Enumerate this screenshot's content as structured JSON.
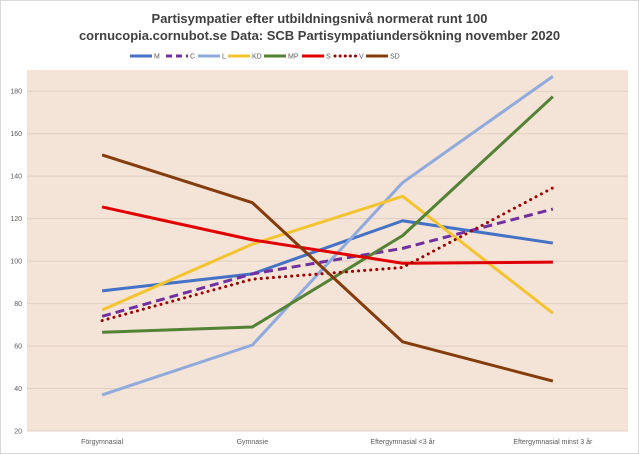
{
  "chart_data": {
    "type": "line",
    "title": "Partisympatier efter utbildningsnivå normerat runt 100",
    "subtitle": "cornucopia.cornubot.se Data: SCB Partisympatiundersökning november 2020",
    "xlabel": "",
    "ylabel": "",
    "categories": [
      "Förgymnasial",
      "Gymnasie",
      "Eftergymnasial <3 år",
      "Eftergymnasial minst 3 år"
    ],
    "ylim": [
      20,
      190
    ],
    "yticks": [
      20,
      40,
      60,
      80,
      100,
      120,
      140,
      160,
      180
    ],
    "grid": true,
    "legend": "top",
    "plot_background": "#f4e3d7",
    "series": [
      {
        "name": "M",
        "color": "#4472c4",
        "style": "solid",
        "values": [
          86,
          94,
          119,
          108.5
        ]
      },
      {
        "name": "C",
        "color": "#7030a0",
        "style": "dashed",
        "values": [
          74,
          94,
          106,
          124.5
        ]
      },
      {
        "name": "L",
        "color": "#8faadc",
        "style": "solid",
        "values": [
          37,
          60.5,
          137,
          187
        ]
      },
      {
        "name": "KD",
        "color": "#f4c430",
        "style": "solid",
        "values": [
          77,
          108,
          130.5,
          75.5
        ]
      },
      {
        "name": "MP",
        "color": "#548235",
        "style": "solid",
        "values": [
          66.5,
          69,
          112,
          177.5
        ]
      },
      {
        "name": "S",
        "color": "#e00000",
        "style": "solid",
        "values": [
          125.5,
          110,
          99,
          99.5
        ]
      },
      {
        "name": "V",
        "color": "#9a0000",
        "style": "dotted",
        "values": [
          72,
          91.5,
          97,
          134.5
        ]
      },
      {
        "name": "SD",
        "color": "#843c0c",
        "style": "solid",
        "values": [
          150,
          127.5,
          62,
          43.5
        ]
      }
    ]
  }
}
